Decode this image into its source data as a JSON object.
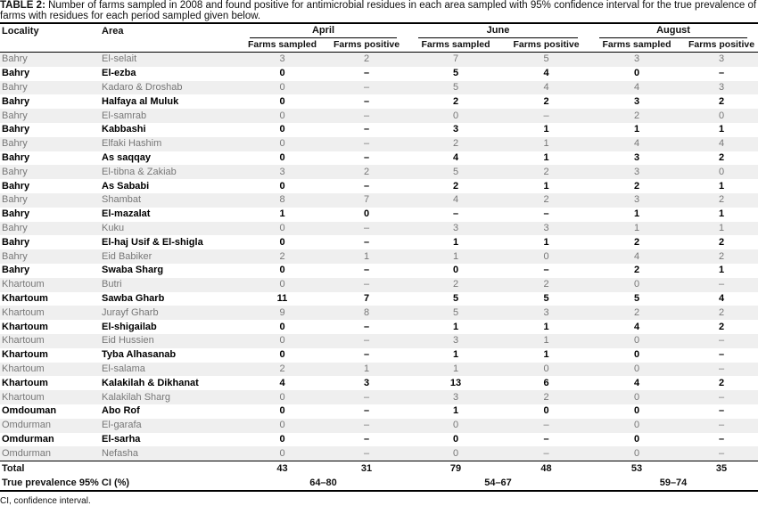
{
  "header": {
    "label": "TABLE 2:",
    "text": "Number of farms sampled in 2008 and found positive for antimicrobial residues in each area sampled with 95% confidence interval for the true prevalence of farms with residues for each period sampled given below."
  },
  "table": {
    "columns": [
      "Locality",
      "Area"
    ],
    "periods": [
      "April",
      "June",
      "August"
    ],
    "subcolumns": [
      "Farms sampled",
      "Farms positive"
    ],
    "rows": [
      [
        "Bahry",
        "El-selait",
        3,
        2,
        7,
        5,
        3,
        3
      ],
      [
        "Bahry",
        "El-ezba",
        0,
        "–",
        5,
        4,
        0,
        "–"
      ],
      [
        "Bahry",
        "Kadaro & Droshab",
        0,
        "–",
        5,
        4,
        4,
        3
      ],
      [
        "Bahry",
        "Halfaya al Muluk",
        0,
        "–",
        2,
        2,
        3,
        2
      ],
      [
        "Bahry",
        "El-samrab",
        0,
        "–",
        0,
        "–",
        2,
        0
      ],
      [
        "Bahry",
        "Kabbashi",
        0,
        "–",
        3,
        1,
        1,
        1
      ],
      [
        "Bahry",
        "Elfaki Hashim",
        0,
        "–",
        2,
        1,
        4,
        4
      ],
      [
        "Bahry",
        "As saqqay",
        0,
        "–",
        4,
        1,
        3,
        2
      ],
      [
        "Bahry",
        "El-tibna & Zakiab",
        3,
        2,
        5,
        2,
        3,
        0
      ],
      [
        "Bahry",
        "As Sababi",
        0,
        "–",
        2,
        1,
        2,
        1
      ],
      [
        "Bahry",
        "Shambat",
        8,
        7,
        4,
        2,
        3,
        2
      ],
      [
        "Bahry",
        "El-mazalat",
        1,
        0,
        "–",
        "–",
        1,
        1
      ],
      [
        "Bahry",
        "Kuku",
        0,
        "–",
        3,
        3,
        1,
        1
      ],
      [
        "Bahry",
        "El-haj Usif & El-shigla",
        0,
        "–",
        1,
        1,
        2,
        2
      ],
      [
        "Bahry",
        "Eid Babiker",
        2,
        1,
        1,
        0,
        4,
        2
      ],
      [
        "Bahry",
        "Swaba Sharg",
        0,
        "–",
        0,
        "–",
        2,
        1
      ],
      [
        "Khartoum",
        "Butri",
        0,
        "–",
        2,
        2,
        0,
        "–"
      ],
      [
        "Khartoum",
        "Sawba Gharb",
        11,
        7,
        5,
        5,
        5,
        4
      ],
      [
        "Khartoum",
        "Jurayf Gharb",
        9,
        8,
        5,
        3,
        2,
        2
      ],
      [
        "Khartoum",
        "El-shigailab",
        0,
        "–",
        1,
        1,
        4,
        2
      ],
      [
        "Khartoum",
        "Eid Hussien",
        0,
        "–",
        3,
        1,
        0,
        "–"
      ],
      [
        "Khartoum",
        "Tyba Alhasanab",
        0,
        "–",
        1,
        1,
        0,
        "–"
      ],
      [
        "Khartoum",
        "El-salama",
        2,
        1,
        1,
        0,
        0,
        "–"
      ],
      [
        "Khartoum",
        "Kalakilah & Dikhanat",
        4,
        3,
        13,
        6,
        4,
        2
      ],
      [
        "Khartoum",
        "Kalakilah Sharg",
        0,
        "–",
        3,
        2,
        0,
        "–"
      ],
      [
        "Omdouman",
        "Abo Rof",
        0,
        "–",
        1,
        0,
        0,
        "–"
      ],
      [
        "Omdurman",
        "El-garafa",
        0,
        "–",
        0,
        "–",
        0,
        "–"
      ],
      [
        "Omdurman",
        "El-sarha",
        0,
        "–",
        0,
        "–",
        0,
        "–"
      ],
      [
        "Omdurman",
        "Nefasha",
        0,
        "–",
        0,
        "–",
        0,
        "–"
      ]
    ],
    "total": {
      "label": "Total",
      "values": [
        43,
        31,
        79,
        48,
        53,
        35
      ]
    },
    "prevalence": {
      "label": "True prevalence 95% CI (%)",
      "values": [
        "64–80",
        "54–67",
        "59–74"
      ]
    }
  },
  "footnote": "CI, confidence interval."
}
